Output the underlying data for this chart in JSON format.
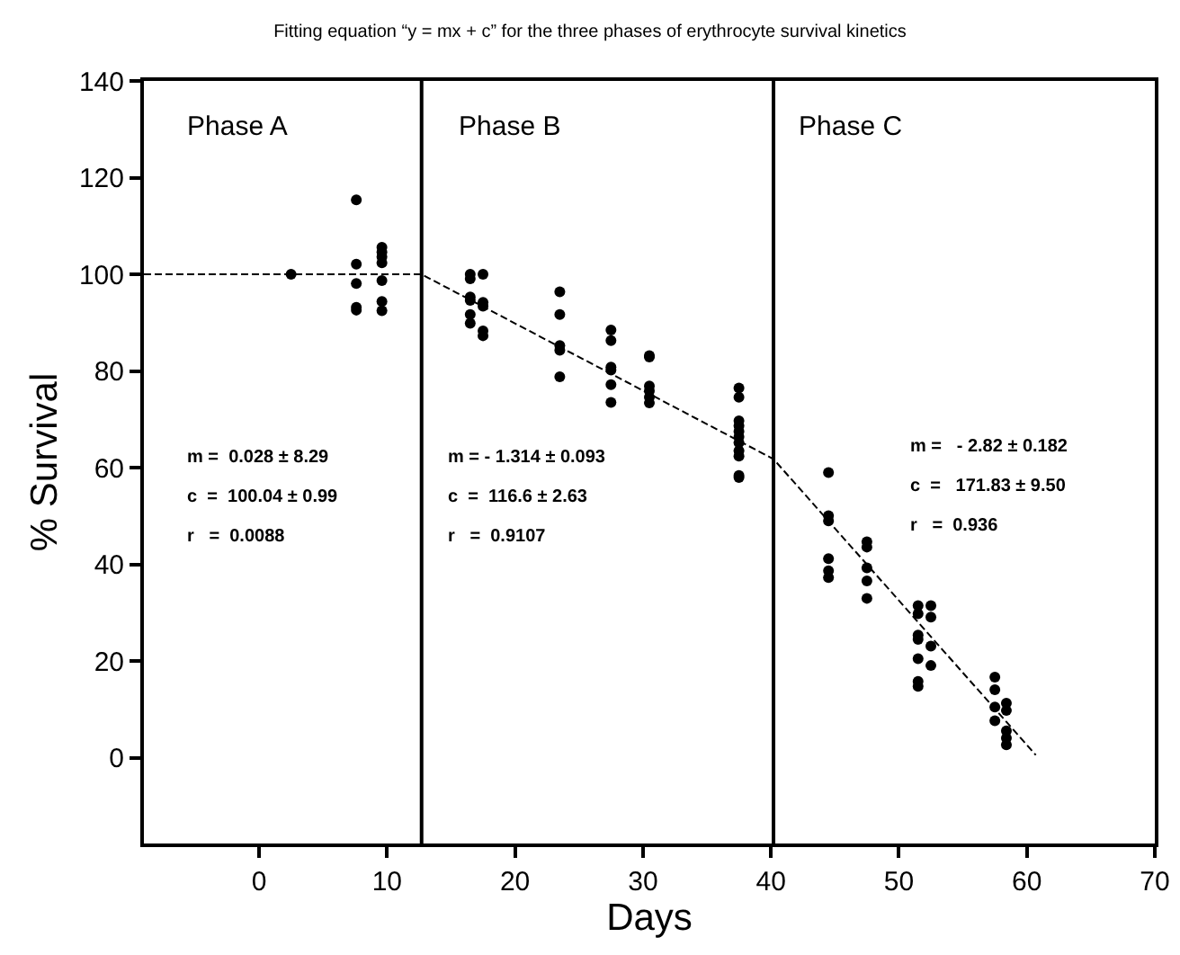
{
  "chart_data": {
    "type": "scatter",
    "title": "Fitting equation “y = mx + c” for the three phases of erythrocyte survival kinetics",
    "xlabel": "Days",
    "ylabel": "% Survival",
    "xlim": [
      -9,
      70
    ],
    "xticks": [
      0,
      10,
      20,
      30,
      40,
      50,
      60,
      70
    ],
    "ylim": [
      -17.7,
      140
    ],
    "yticks": [
      0,
      20,
      40,
      60,
      80,
      100,
      120,
      140
    ],
    "grid": false,
    "series": [
      {
        "type": "scatter",
        "color": "#000000",
        "marker": "circle",
        "x": [
          2.5,
          7.6,
          7.6,
          7.6,
          7.6,
          7.6,
          9.6,
          9.6,
          9.6,
          9.6,
          9.6,
          9.6,
          9.6,
          16.5,
          16.5,
          16.5,
          16.5,
          16.5,
          16.5,
          17.5,
          17.5,
          17.5,
          17.5,
          17.5,
          23.5,
          23.5,
          23.5,
          23.5,
          23.5,
          27.5,
          27.5,
          27.5,
          27.5,
          27.5,
          27.5,
          30.5,
          30.5,
          30.5,
          30.5,
          30.5,
          30.5,
          37.5,
          37.5,
          37.5,
          37.5,
          37.5,
          37.5,
          37.5,
          37.5,
          37.5,
          37.5,
          37.5,
          44.5,
          44.5,
          44.5,
          44.5,
          44.5,
          44.5,
          47.5,
          47.5,
          47.5,
          47.5,
          47.5,
          51.5,
          51.5,
          51.5,
          51.5,
          51.5,
          51.5,
          51.5,
          52.5,
          52.5,
          52.5,
          52.5,
          57.5,
          57.5,
          57.5,
          57.5,
          58.4,
          58.4,
          58.4,
          58.4,
          58.4
        ],
        "values": [
          100,
          115.4,
          102.1,
          98.1,
          93.2,
          92.6,
          105.6,
          104.6,
          103.6,
          102.4,
          98.7,
          94.4,
          92.5,
          100,
          99.1,
          95.3,
          94.6,
          91.7,
          89.9,
          100,
          94.2,
          93.4,
          88.3,
          87.3,
          96.4,
          91.7,
          85.3,
          84.3,
          78.8,
          88.5,
          86.3,
          80.8,
          80.2,
          77.2,
          73.5,
          83.2,
          82.9,
          76.9,
          75.9,
          74.6,
          73.4,
          76.5,
          74.6,
          69.7,
          68.7,
          67.5,
          66.4,
          65.2,
          63.5,
          62.4,
          58.4,
          58.0,
          59.0,
          50.1,
          49.0,
          41.2,
          38.7,
          37.3,
          44.7,
          43.6,
          39.3,
          36.6,
          33.0,
          31.5,
          29.8,
          25.4,
          24.5,
          20.5,
          15.8,
          14.8,
          31.5,
          29.1,
          23.1,
          19.1,
          16.7,
          14.1,
          10.5,
          7.7,
          11.3,
          9.8,
          5.6,
          4.1,
          2.7
        ]
      },
      {
        "type": "line",
        "color": "#000000",
        "marker": "none",
        "line_style": "dashed",
        "x": [
          -9,
          12.7,
          40.2,
          60.7
        ],
        "values": [
          100,
          100,
          61.8,
          0.6
        ]
      }
    ],
    "ref_lines": [
      {
        "axis": "x",
        "value": 12.7,
        "color": "#000000",
        "line_style": "solid"
      },
      {
        "axis": "x",
        "value": 40.2,
        "color": "#000000",
        "line_style": "solid"
      }
    ],
    "annotations": [
      "Phase A",
      "Phase B",
      "Phase C",
      "m =  0.028 ± 8.29",
      "c  =  100.04 ± 0.99",
      "r   =  0.0088",
      "m = - 1.314 ± 0.093",
      "c  =  116.6 ± 2.63",
      "r   =  0.9107",
      "m =   - 2.82 ± 0.182",
      "c  =   171.83 ± 9.50",
      "r   =  0.936"
    ]
  }
}
